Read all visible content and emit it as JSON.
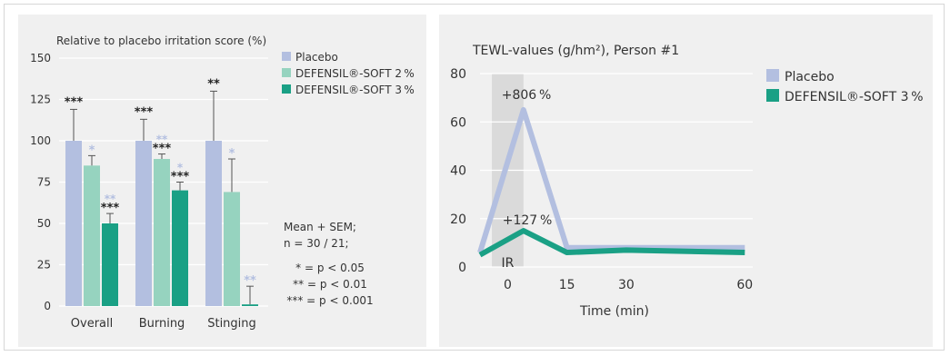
{
  "colors": {
    "placebo": "#b3bfe0",
    "soft2": "#96d3bf",
    "soft3": "#1aa085",
    "ir_band": "#dadada",
    "panel_bg": "#f0f0f0",
    "grid": "#ffffff",
    "text": "#333333"
  },
  "chart_data": [
    {
      "type": "bar",
      "title": "Relative to placebo irritation score (%)",
      "categories": [
        "Overall",
        "Burning",
        "Stinging"
      ],
      "ylim": [
        0,
        150
      ],
      "yticks": [
        "0",
        "25",
        "50",
        "75",
        "100",
        "125",
        "150"
      ],
      "grid": true,
      "legend": "top-right",
      "series": [
        {
          "name": "Placebo",
          "values": [
            100,
            100,
            100
          ],
          "error": [
            19,
            13,
            30
          ],
          "significance": [
            "***",
            "***",
            "**"
          ]
        },
        {
          "name": "DEFENSIL®-SOFT 2 %",
          "values": [
            85,
            89,
            69
          ],
          "error": [
            6,
            3,
            20
          ],
          "significance": [
            "*",
            "**|***",
            "*"
          ]
        },
        {
          "name": "DEFENSIL®-SOFT 3 %",
          "values": [
            50,
            70,
            1
          ],
          "error": [
            6,
            5,
            11
          ],
          "significance": [
            "**|***",
            "*|***",
            "**"
          ]
        }
      ],
      "notes": [
        "Mean + SEM;",
        "n = 30 / 21;",
        "* = p < 0.05",
        "** = p < 0.01",
        "*** = p < 0.001"
      ]
    },
    {
      "type": "line",
      "title": "TEWL-values (g/hm²), Person #1",
      "xlabel": "Time (min)",
      "x_ticks": [
        "0",
        "15",
        "30",
        "60"
      ],
      "yticks": [
        "0",
        "20",
        "40",
        "60",
        "80"
      ],
      "xlim": [
        -7,
        62
      ],
      "ylim": [
        0,
        80
      ],
      "legend": "top-right",
      "grid": true,
      "shaded_region": {
        "label": "IR",
        "x": [
          -4,
          4
        ]
      },
      "series": [
        {
          "name": "Placebo",
          "x": [
            -7,
            4,
            15,
            30,
            60
          ],
          "values": [
            6,
            65,
            8,
            8,
            8
          ]
        },
        {
          "name": "DEFENSIL®-SOFT 3 %",
          "x": [
            -7,
            4,
            15,
            30,
            60
          ],
          "values": [
            5,
            15,
            6,
            7,
            6
          ]
        }
      ],
      "annotations": [
        "+806 %",
        "+127 %"
      ]
    }
  ]
}
